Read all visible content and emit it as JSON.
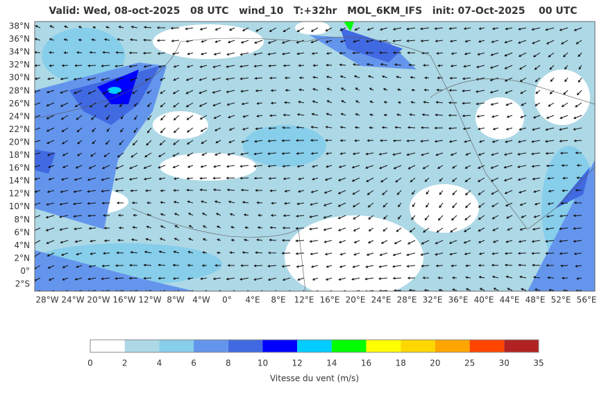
{
  "title": "Valid: Wed, 08-oct-2025   08 UTC   wind_10   T:+32hr   MOL_6KM_IFS   init: 07-Oct-2025    00 UTC",
  "lat_labels": [
    "38°N",
    "36°N",
    "34°N",
    "32°N",
    "30°N",
    "28°N",
    "26°N",
    "24°N",
    "22°N",
    "20°N",
    "18°N",
    "16°N",
    "14°N",
    "12°N",
    "10°N",
    "8°N",
    "6°N",
    "4°N",
    "2°N",
    "0°",
    "2°S"
  ],
  "lon_labels": [
    "28°W",
    "24°W",
    "20°W",
    "16°W",
    "12°W",
    "8°W",
    "4°W",
    "0°",
    "4°E",
    "8°E",
    "12°E",
    "16°E",
    "20°E",
    "24°E",
    "28°E",
    "32°E",
    "36°E",
    "40°E",
    "44°E",
    "48°E",
    "52°E",
    "56°E"
  ],
  "colorbar": {
    "label": "Vitesse du vent (m/s)",
    "ticks": [
      "0",
      "2",
      "4",
      "6",
      "8",
      "10",
      "12",
      "14",
      "16",
      "18",
      "20",
      "25",
      "30",
      "35"
    ],
    "colors": [
      "#ffffff",
      "#add8e6",
      "#87ceeb",
      "#6495ed",
      "#4169e1",
      "#0000ff",
      "#00ccff",
      "#00ff00",
      "#ffff00",
      "#ffd700",
      "#ffa500",
      "#ff4500",
      "#b22222"
    ]
  }
}
